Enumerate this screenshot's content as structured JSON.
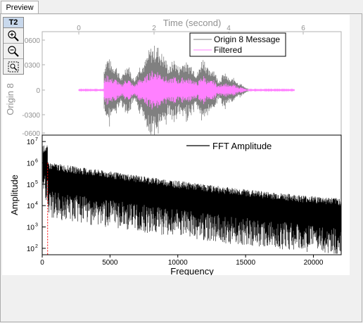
{
  "tab": {
    "label": "Preview"
  },
  "toolbox": {
    "label": "T2",
    "buttons": [
      "zoom-in-icon",
      "zoom-out-icon",
      "zoom-rect-icon"
    ]
  },
  "chart_data": [
    {
      "type": "line",
      "title": "",
      "xlabel": "Time (second)",
      "ylabel": "Origin 8",
      "x_ticks": [
        "0",
        "2",
        "4",
        "6"
      ],
      "y_ticks": [
        "0600",
        "0300",
        "0",
        "-0300",
        "-0600"
      ],
      "xlim": [
        0,
        6
      ],
      "series": [
        {
          "name": "Origin 8 Message",
          "color": "#808080"
        },
        {
          "name": "Filtered",
          "color": "#ff80ff"
        }
      ]
    },
    {
      "type": "line",
      "title": "",
      "xlabel": "Frequency",
      "ylabel": "Amplitude",
      "x_ticks": [
        "0",
        "5000",
        "10000",
        "15000",
        "20000"
      ],
      "y_ticks": [
        "10^7",
        "10^6",
        "10^5",
        "10^4",
        "10^3",
        "10^2"
      ],
      "xlim": [
        0,
        22050
      ],
      "ylim": [
        50,
        20000000
      ],
      "yscale": "log",
      "series": [
        {
          "name": "FFT Amplitude",
          "color": "#000000"
        }
      ]
    }
  ]
}
